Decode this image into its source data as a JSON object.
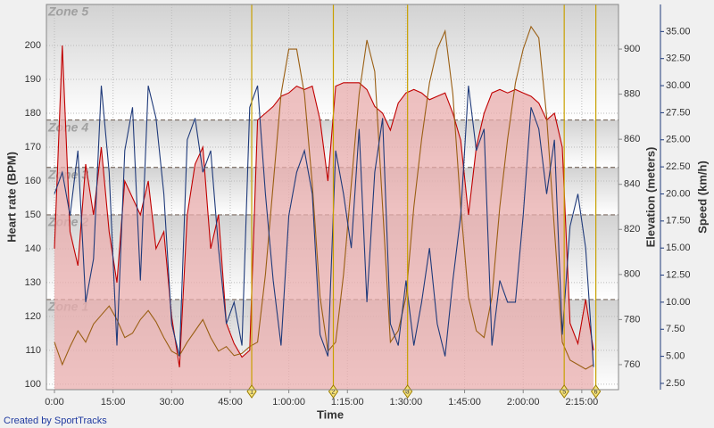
{
  "chart_data": {
    "type": "line",
    "x_label": "Time",
    "y_label": "Heart rate (BPM)",
    "y2_label": "Elevation (meters)",
    "y3_label": "Speed (km/h)",
    "credit": "Created by SportTracks",
    "x": [
      0,
      2,
      4,
      6,
      8,
      10,
      12,
      14,
      16,
      18,
      20,
      22,
      24,
      26,
      28,
      30,
      32,
      34,
      36,
      38,
      40,
      42,
      44,
      46,
      48,
      50,
      52,
      54,
      56,
      58,
      60,
      62,
      64,
      66,
      68,
      70,
      72,
      74,
      76,
      78,
      80,
      82,
      84,
      86,
      88,
      90,
      92,
      94,
      96,
      98,
      100,
      102,
      104,
      106,
      108,
      110,
      112,
      114,
      116,
      118,
      120,
      122,
      124,
      126,
      128,
      130,
      132,
      134,
      136,
      138
    ],
    "xlim": [
      -2.06,
      144.4
    ],
    "xticks": [
      {
        "value": 0,
        "label": "0:00"
      },
      {
        "value": 15,
        "label": "15:00"
      },
      {
        "value": 30,
        "label": "30:00"
      },
      {
        "value": 45,
        "label": "45:00"
      },
      {
        "value": 60,
        "label": "1:00:00"
      },
      {
        "value": 75,
        "label": "1:15:00"
      },
      {
        "value": 90,
        "label": "1:30:00"
      },
      {
        "value": 105,
        "label": "1:45:00"
      },
      {
        "value": 120,
        "label": "2:00:00"
      },
      {
        "value": 135,
        "label": "2:15:00"
      }
    ],
    "ylim": [
      98.4,
      212.1
    ],
    "yticks": [
      100,
      110,
      120,
      130,
      140,
      150,
      160,
      170,
      180,
      190,
      200
    ],
    "y2lim": [
      748.9,
      919.8
    ],
    "y2ticks": [
      760,
      780,
      800,
      820,
      840,
      860,
      880,
      900
    ],
    "y3lim": [
      1.92,
      37.5
    ],
    "y3ticks": [
      {
        "value": 2.5,
        "label": "2.50"
      },
      {
        "value": 5,
        "label": "5.00"
      },
      {
        "value": 7.5,
        "label": "7.50"
      },
      {
        "value": 10,
        "label": "10.00"
      },
      {
        "value": 12.5,
        "label": "12.50"
      },
      {
        "value": 15,
        "label": "15.00"
      },
      {
        "value": 17.5,
        "label": "17.50"
      },
      {
        "value": 20,
        "label": "20.00"
      },
      {
        "value": 22.5,
        "label": "22.50"
      },
      {
        "value": 25,
        "label": "25.00"
      },
      {
        "value": 27.5,
        "label": "27.50"
      },
      {
        "value": 30,
        "label": "30.00"
      },
      {
        "value": 32.5,
        "label": "32.50"
      },
      {
        "value": 35,
        "label": "35.00"
      }
    ],
    "grid": true,
    "zone_labels": [
      "Zone 1",
      "Zone 2",
      "Zone 3",
      "Zone 4",
      "Zone 5"
    ],
    "zone_bounds": [
      125,
      150,
      164,
      178
    ],
    "laps": [
      {
        "label": "1",
        "x": 50.5
      },
      {
        "label": "2",
        "x": 71.4
      },
      {
        "label": "3",
        "x": 90.4
      },
      {
        "label": "5",
        "x": 130.5
      },
      {
        "label": "6",
        "x": 138.6
      }
    ],
    "series": [
      {
        "name": "Heart rate",
        "color": "#c00000",
        "fill": "#e9aeae",
        "axis": "y",
        "values": [
          140,
          200,
          145,
          135,
          165,
          150,
          170,
          145,
          130,
          160,
          155,
          150,
          160,
          140,
          145,
          120,
          105,
          150,
          165,
          170,
          140,
          150,
          118,
          112,
          108,
          110,
          178,
          180,
          182,
          185,
          186,
          188,
          187,
          188,
          178,
          160,
          188,
          189,
          189,
          189,
          187,
          182,
          180,
          175,
          183,
          186,
          187,
          186,
          184,
          185,
          186,
          180,
          172,
          150,
          170,
          180,
          186,
          187,
          186,
          187,
          186,
          185,
          183,
          178,
          180,
          170,
          118,
          112,
          125,
          110
        ]
      },
      {
        "name": "Elevation",
        "color": "#9a5f14",
        "axis": "y2",
        "values": [
          770,
          760,
          768,
          775,
          770,
          778,
          782,
          786,
          780,
          772,
          774,
          780,
          784,
          779,
          772,
          766,
          764,
          770,
          775,
          780,
          772,
          766,
          768,
          764,
          765,
          768,
          770,
          800,
          840,
          880,
          900,
          900,
          880,
          840,
          790,
          766,
          770,
          800,
          840,
          880,
          904,
          890,
          830,
          770,
          775,
          790,
          830,
          860,
          885,
          900,
          908,
          880,
          830,
          790,
          775,
          772,
          790,
          830,
          860,
          885,
          900,
          910,
          905,
          870,
          820,
          770,
          762,
          760,
          758,
          760
        ]
      },
      {
        "name": "Speed",
        "color": "#1f3a7a",
        "axis": "y3",
        "values": [
          20,
          22,
          18,
          24,
          10,
          14,
          30,
          22,
          6,
          24,
          28,
          12,
          30,
          27,
          20,
          8,
          5,
          25,
          27,
          22,
          24,
          15,
          8,
          10,
          6,
          28,
          30,
          20,
          12,
          6,
          18,
          22,
          24,
          20,
          7,
          5,
          24,
          20,
          15,
          26,
          10,
          22,
          27,
          8,
          6,
          12,
          6,
          10,
          15,
          8,
          5,
          12,
          18,
          30,
          24,
          26,
          6,
          12,
          10,
          10,
          18,
          28,
          26,
          20,
          25,
          7,
          17,
          20,
          15,
          4
        ]
      }
    ]
  }
}
